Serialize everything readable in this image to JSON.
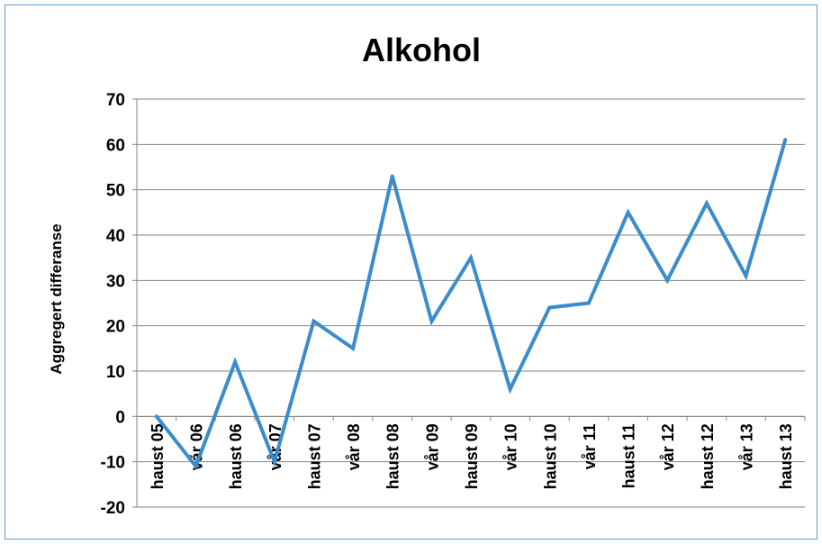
{
  "chart_data": {
    "type": "line",
    "title": "Alkohol",
    "xlabel": "",
    "ylabel": "Aggregert differanse",
    "categories": [
      "haust 05",
      "vår 06",
      "haust 06",
      "vår 07",
      "haust 07",
      "vår 08",
      "haust 08",
      "vår 09",
      "haust 09",
      "vår 10",
      "haust 10",
      "vår 11",
      "haust 11",
      "vår 12",
      "haust 12",
      "vår 13",
      "haust 13"
    ],
    "series": [
      {
        "values": [
          0,
          -11,
          12,
          -10,
          21,
          15,
          53,
          21,
          35,
          6,
          24,
          25,
          45,
          30,
          47,
          31,
          61
        ],
        "color": "#3a8ccc"
      }
    ],
    "ylim": [
      -20,
      70
    ],
    "yticks": [
      70,
      60,
      50,
      40,
      30,
      20,
      10,
      0,
      -10,
      -20
    ],
    "grid": true,
    "legend": "none"
  }
}
